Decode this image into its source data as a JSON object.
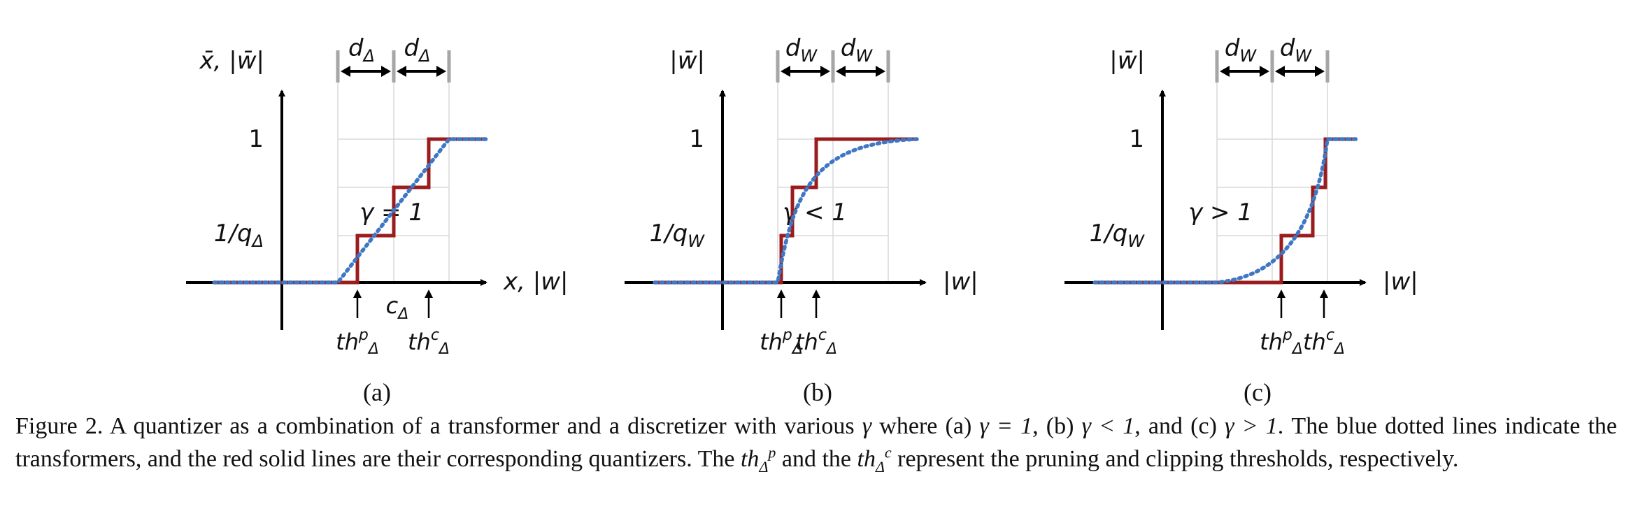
{
  "figure": {
    "colors": {
      "quantizer": "#9a1c1c",
      "transformer": "#3f77c4",
      "axis": "#000000",
      "grid": "#d9d9d9",
      "tick": "#a6a6a6"
    },
    "panels": [
      {
        "letter": "(a)",
        "y_label": "x̄, |w̄|",
        "x_label": "x, |w|",
        "spacing_symbol": "d",
        "spacing_subscript": "Δ",
        "one_label": "1",
        "inv_label_prefix": "1/q",
        "inv_label_subscript": "Δ",
        "gamma_label": "γ = 1",
        "center_label": "c",
        "center_subscript": "Δ",
        "threshold_prune_base": "th",
        "threshold_prune_sub": "Δ",
        "threshold_prune_sup": "p",
        "threshold_clip_base": "th",
        "threshold_clip_sub": "Δ",
        "threshold_clip_sup": "c"
      },
      {
        "letter": "(b)",
        "y_label": "|w̄|",
        "x_label": "|w|",
        "spacing_symbol": "d",
        "spacing_subscript": "W",
        "one_label": "1",
        "inv_label_prefix": "1/q",
        "inv_label_subscript": "W",
        "gamma_label": "γ < 1",
        "threshold_prune_base": "th",
        "threshold_prune_sub": "Δ",
        "threshold_prune_sup": "p",
        "threshold_clip_base": "th",
        "threshold_clip_sub": "Δ",
        "threshold_clip_sup": "c"
      },
      {
        "letter": "(c)",
        "y_label": "|w̄|",
        "x_label": "|w|",
        "spacing_symbol": "d",
        "spacing_subscript": "W",
        "one_label": "1",
        "inv_label_prefix": "1/q",
        "inv_label_subscript": "W",
        "gamma_label": "γ > 1",
        "threshold_prune_base": "th",
        "threshold_prune_sub": "Δ",
        "threshold_prune_sup": "p",
        "threshold_clip_base": "th",
        "threshold_clip_sub": "Δ",
        "threshold_clip_sup": "c"
      }
    ]
  },
  "caption": {
    "line1_a": "Figure 2. A quantizer as a combination of a transformer and a discretizer with various ",
    "gamma": "γ",
    "line1_b": " where (a) ",
    "cond_a": "γ = 1",
    "line1_c": ", (b) ",
    "cond_b": "γ < 1",
    "line1_d": ", and (c) ",
    "cond_c": "γ > 1",
    "line1_e": ". The blue dotted lines indicate the transformers, and the red solid lines are their corresponding quantizers. The ",
    "th_base": "th",
    "th_sub": "Δ",
    "th_p": "p",
    "th_c": "c",
    "mid": " and the ",
    "end": " represent the pruning and clipping thresholds, respectively."
  }
}
